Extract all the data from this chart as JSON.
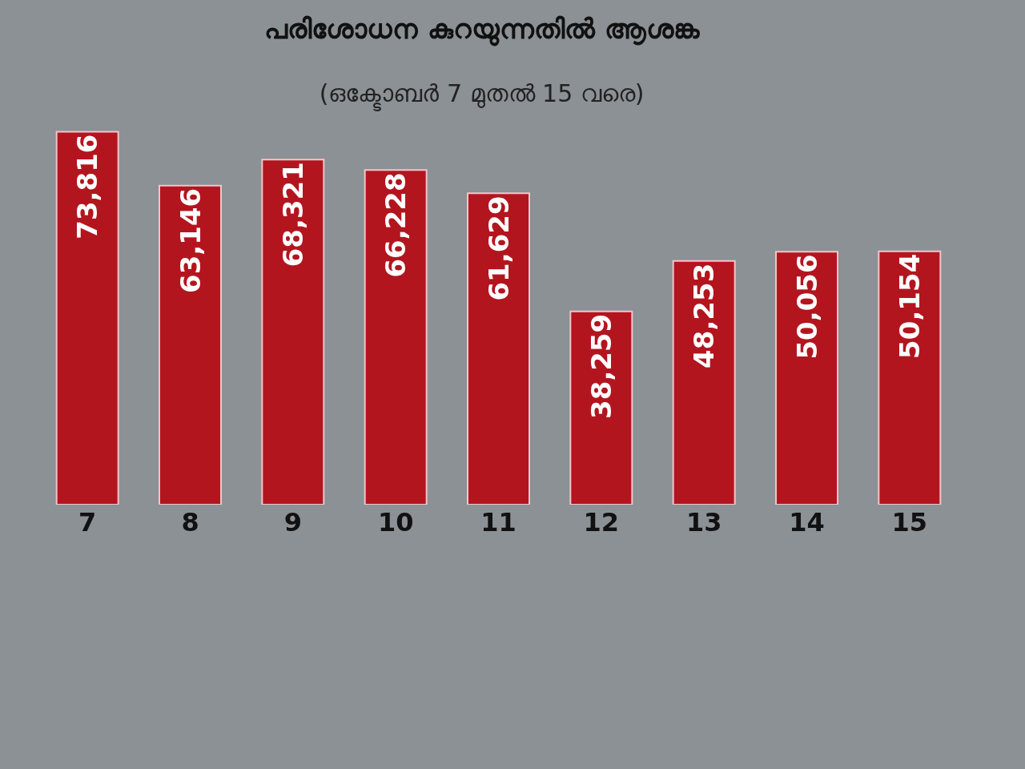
{
  "chart_data": {
    "type": "bar",
    "title": "പരിശോധന കുറയുന്നതിൽ ആശങ്ക",
    "subtitle": "(ഒക്ടോബർ 7 മുതൽ 15 വരെ)",
    "categories": [
      "7",
      "8",
      "9",
      "10",
      "11",
      "12",
      "13",
      "14",
      "15"
    ],
    "values": [
      73816,
      63146,
      68321,
      66228,
      61629,
      38259,
      48253,
      50056,
      50154
    ],
    "value_labels": [
      "73,816",
      "63,146",
      "68,321",
      "66,228",
      "61,629",
      "38,259",
      "48,253",
      "50,056",
      "50,154"
    ],
    "color": "#b3151f"
  }
}
